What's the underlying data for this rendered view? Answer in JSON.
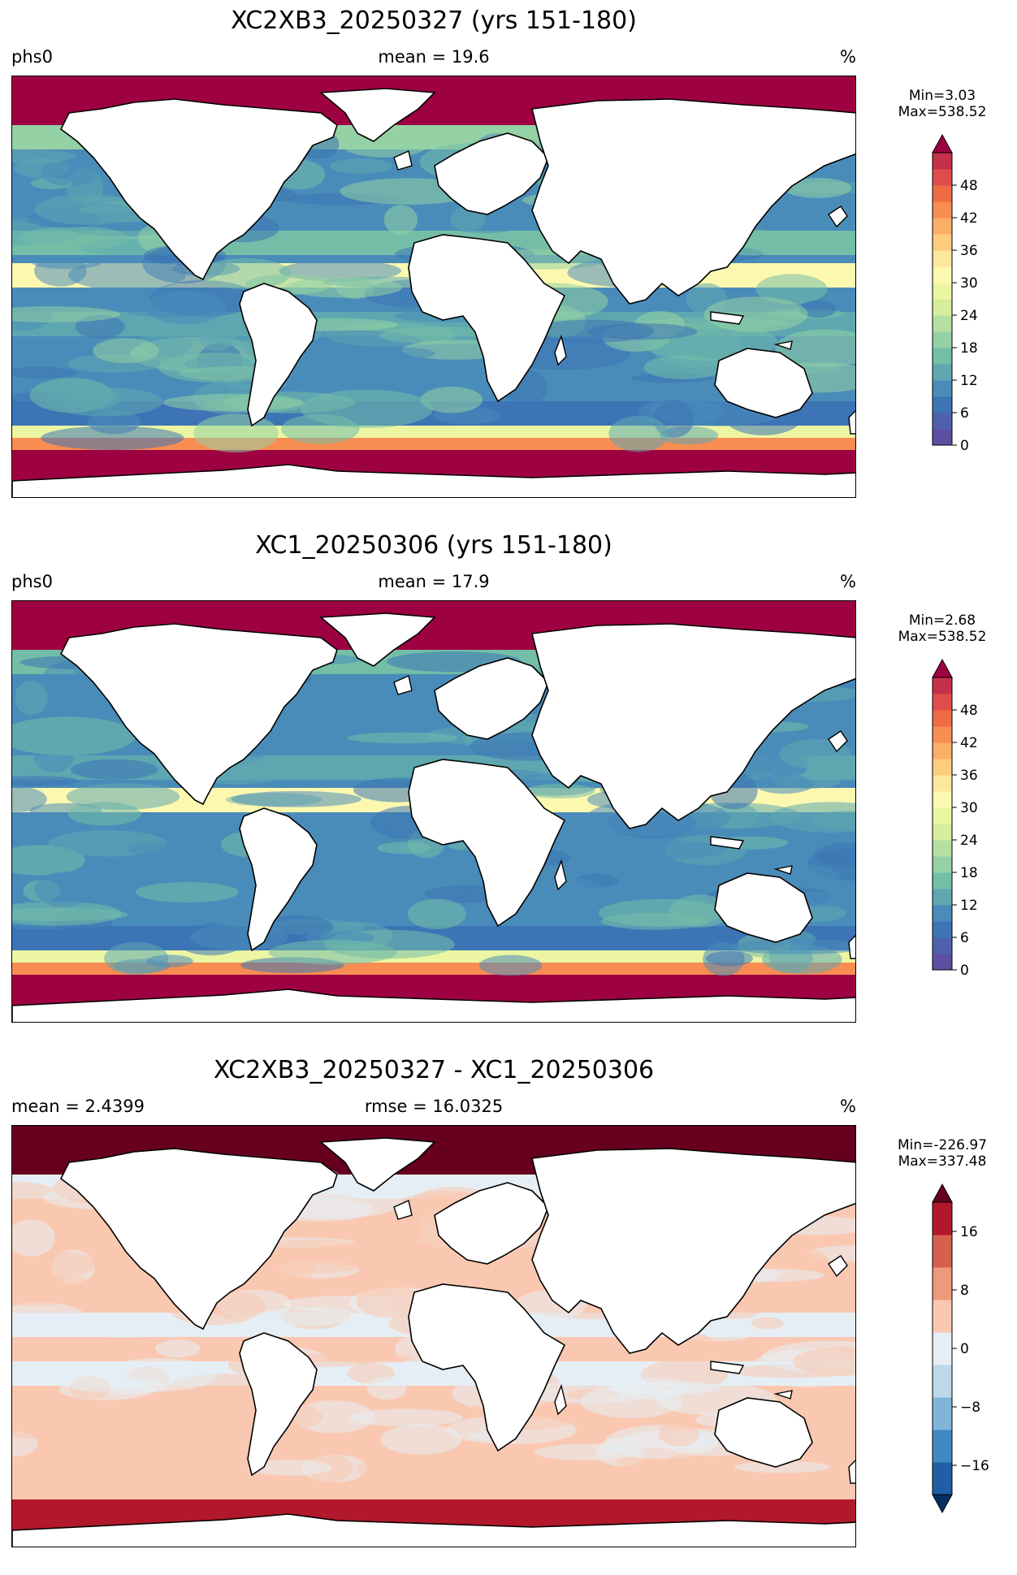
{
  "panels": [
    {
      "title": "XC2XB3_20250327 (yrs 151-180)",
      "left_label": "phs0",
      "center_label": "mean = 19.6",
      "right_label": "%",
      "min_text": "Min=3.03",
      "max_text": "Max=538.52",
      "colorbar": {
        "ticks": [
          "0",
          "6",
          "12",
          "18",
          "24",
          "30",
          "36",
          "42",
          "48"
        ],
        "colors": [
          "#5e4fa2",
          "#4f61aa",
          "#3d74b5",
          "#4a8cb9",
          "#5ea7b1",
          "#74bea8",
          "#94d1a4",
          "#b6e0a2",
          "#d6ee9b",
          "#ecf6a2",
          "#fdf8b0",
          "#fde79a",
          "#fdcd7d",
          "#fbaf65",
          "#f88d52",
          "#ef6c45",
          "#e04c4a",
          "#c5304a"
        ],
        "over_color": "#9e0142",
        "extend": "max"
      },
      "ocean_palette": [
        "#3d74b5",
        "#4a8cb9",
        "#5ea7b1",
        "#74bea8",
        "#94d1a4"
      ],
      "band_colors": [
        "#9e0142",
        "#9e0142",
        "#f88d52",
        "#fdf8b0",
        "#ecf6a2"
      ]
    },
    {
      "title": "XC1_20250306 (yrs 151-180)",
      "left_label": "phs0",
      "center_label": "mean = 17.9",
      "right_label": "%",
      "min_text": "Min=2.68",
      "max_text": "Max=538.52",
      "colorbar": {
        "ticks": [
          "0",
          "6",
          "12",
          "18",
          "24",
          "30",
          "36",
          "42",
          "48"
        ],
        "colors": [
          "#5e4fa2",
          "#4f61aa",
          "#3d74b5",
          "#4a8cb9",
          "#5ea7b1",
          "#74bea8",
          "#94d1a4",
          "#b6e0a2",
          "#d6ee9b",
          "#ecf6a2",
          "#fdf8b0",
          "#fde79a",
          "#fdcd7d",
          "#fbaf65",
          "#f88d52",
          "#ef6c45",
          "#e04c4a",
          "#c5304a"
        ],
        "over_color": "#9e0142",
        "extend": "max"
      },
      "ocean_palette": [
        "#3d74b5",
        "#4a8cb9",
        "#4a8cb9",
        "#5ea7b1",
        "#74bea8"
      ],
      "band_colors": [
        "#9e0142",
        "#9e0142",
        "#f88d52",
        "#fdf8b0",
        "#ecf6a2"
      ]
    },
    {
      "title": "XC2XB3_20250327 - XC1_20250306",
      "left_label": "mean = 2.4399",
      "center_label": "rmse = 16.0325",
      "right_label": "%",
      "min_text": "Min=-226.97",
      "max_text": "Max=337.48",
      "colorbar": {
        "ticks": [
          "−16",
          "−8",
          "0",
          "8",
          "16"
        ],
        "tick_values": [
          -16,
          -8,
          0,
          8,
          16
        ],
        "colors": [
          "#1f5fa5",
          "#3f8ac1",
          "#7fb5d9",
          "#bcd8ea",
          "#e5eef4",
          "#fac8b1",
          "#ee9979",
          "#d5604d",
          "#b2182b"
        ],
        "under_color": "#053061",
        "over_color": "#67001f",
        "extend": "both"
      },
      "ocean_palette": [
        "#fac8b1",
        "#fac8b1",
        "#e5eef4",
        "#fac8b1",
        "#e5eef4"
      ],
      "band_colors": [
        "#67001f",
        "#b2182b",
        "#fac8b1",
        "#e5eef4",
        "#fac8b1"
      ]
    }
  ]
}
